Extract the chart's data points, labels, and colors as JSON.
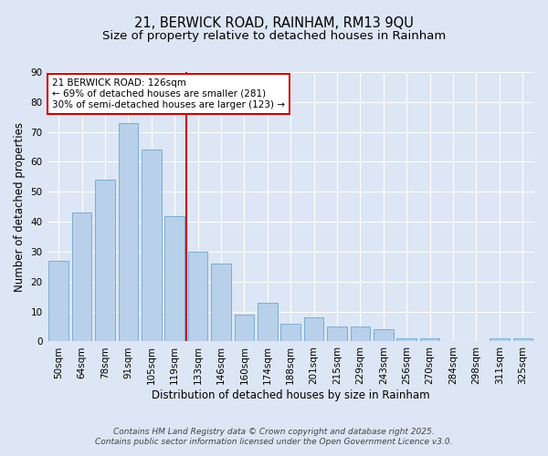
{
  "title1": "21, BERWICK ROAD, RAINHAM, RM13 9QU",
  "title2": "Size of property relative to detached houses in Rainham",
  "xlabel": "Distribution of detached houses by size in Rainham",
  "ylabel": "Number of detached properties",
  "categories": [
    "50sqm",
    "64sqm",
    "78sqm",
    "91sqm",
    "105sqm",
    "119sqm",
    "133sqm",
    "146sqm",
    "160sqm",
    "174sqm",
    "188sqm",
    "201sqm",
    "215sqm",
    "229sqm",
    "243sqm",
    "256sqm",
    "270sqm",
    "284sqm",
    "298sqm",
    "311sqm",
    "325sqm"
  ],
  "values": [
    27,
    43,
    54,
    73,
    64,
    42,
    30,
    26,
    9,
    13,
    6,
    8,
    5,
    5,
    4,
    1,
    1,
    0,
    0,
    1,
    1
  ],
  "bar_color": "#b8d0ea",
  "bar_edge_color": "#7aadd4",
  "vline_x_idx": 6,
  "vline_color": "#cc0000",
  "annotation_line1": "21 BERWICK ROAD: 126sqm",
  "annotation_line2": "← 69% of detached houses are smaller (281)",
  "annotation_line3": "30% of semi-detached houses are larger (123) →",
  "annotation_box_color": "#ffffff",
  "annotation_box_edge_color": "#cc0000",
  "ylim": [
    0,
    90
  ],
  "yticks": [
    0,
    10,
    20,
    30,
    40,
    50,
    60,
    70,
    80,
    90
  ],
  "bg_color": "#dce6f5",
  "plot_bg_color": "#dce6f5",
  "footer1": "Contains HM Land Registry data © Crown copyright and database right 2025.",
  "footer2": "Contains public sector information licensed under the Open Government Licence v3.0.",
  "title_fontsize": 10.5,
  "subtitle_fontsize": 9.5,
  "axis_label_fontsize": 8.5,
  "tick_fontsize": 7.5,
  "annotation_fontsize": 7.5,
  "footer_fontsize": 6.5
}
